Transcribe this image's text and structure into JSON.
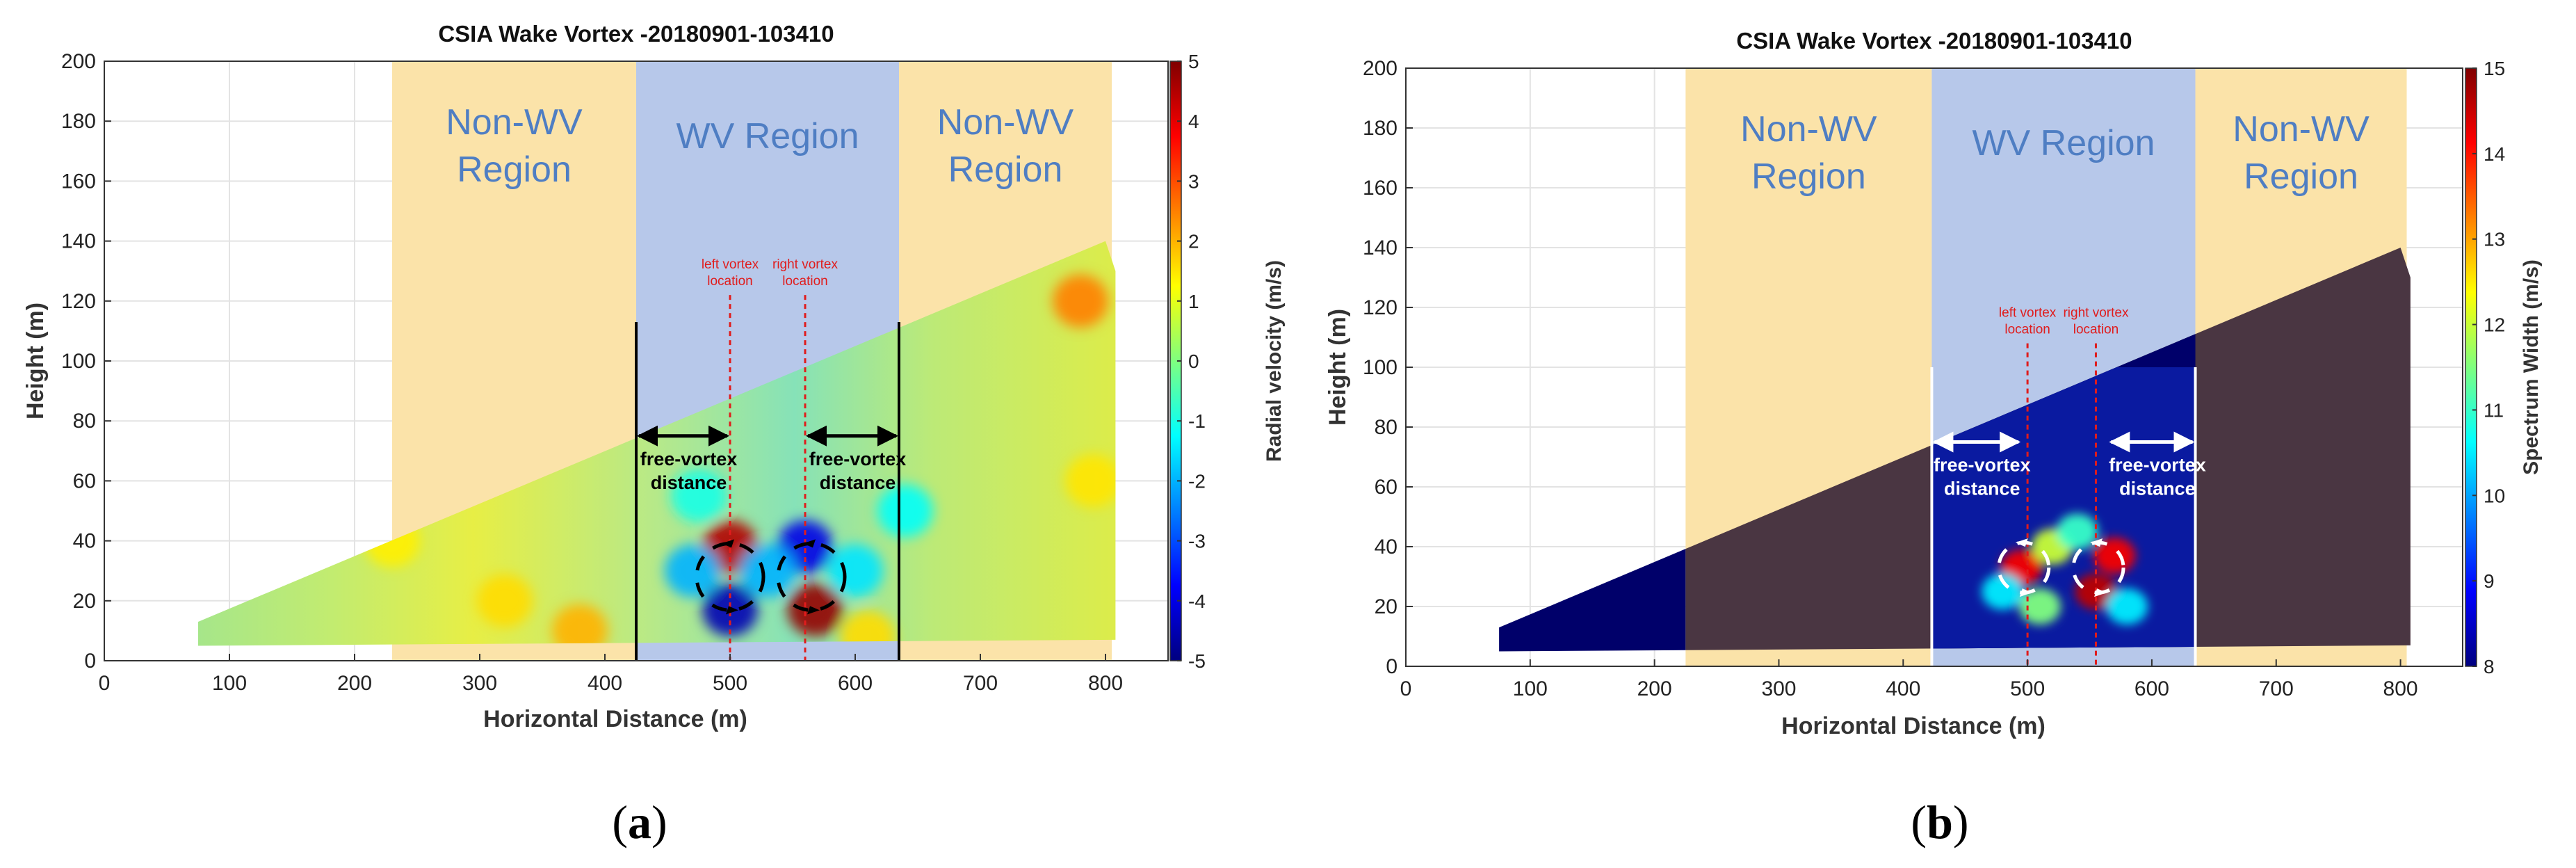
{
  "colors": {
    "non_wv": "#fbe3a9",
    "wv": "#b7c8ea",
    "region_text": "#4f7ec3",
    "marker": "#e01c1c",
    "dark_blue": "#00006a",
    "dark_purple": "#4a3642",
    "arrow_white": "#ffffff",
    "grid": "#e3e3e3"
  },
  "chart_data": [
    {
      "id": "a",
      "type": "heatmap",
      "panel_label": "a",
      "title": "CSIA Wake Vortex -20180901-103410",
      "xlabel": "Horizontal Distance (m)",
      "ylabel": "Height (m)",
      "xlim": [
        0,
        850
      ],
      "ylim": [
        0,
        200
      ],
      "xticks": [
        0,
        100,
        200,
        300,
        400,
        500,
        600,
        700,
        800
      ],
      "yticks": [
        0,
        20,
        40,
        60,
        80,
        100,
        120,
        140,
        160,
        180,
        200
      ],
      "colorbar": {
        "label": "Radial velocity (m/s)",
        "range": [
          -5,
          5
        ],
        "ticks": [
          -5,
          -4,
          -3,
          -2,
          -1,
          0,
          1,
          2,
          3,
          4,
          5
        ],
        "colormap": "jet"
      },
      "scan_sector": {
        "x": [
          75,
          800,
          808,
          808,
          75
        ],
        "y": [
          13,
          140,
          130,
          7,
          5
        ]
      },
      "regions": [
        {
          "label_lines": [
            "Non-WV",
            "Region"
          ],
          "x_range": [
            230,
            425
          ],
          "kind": "non_wv"
        },
        {
          "label_lines": [
            "WV Region"
          ],
          "x_range": [
            425,
            635
          ],
          "kind": "wv"
        },
        {
          "label_lines": [
            "Non-WV",
            "Region"
          ],
          "x_range": [
            635,
            805
          ],
          "kind": "non_wv"
        }
      ],
      "boundary_lines": [
        {
          "x": 425,
          "y_range": [
            0,
            113
          ]
        },
        {
          "x": 635,
          "y_range": [
            0,
            113
          ]
        }
      ],
      "vortex_markers": [
        {
          "label_lines": [
            "left vortex",
            "location"
          ],
          "x": 500,
          "y_top": 122
        },
        {
          "label_lines": [
            "right vortex",
            "location"
          ],
          "x": 560,
          "y_top": 122
        }
      ],
      "free_vortex_arrows": [
        {
          "label_lines": [
            "free-vortex",
            "distance"
          ],
          "x_range": [
            425,
            500
          ],
          "y": 75
        },
        {
          "label_lines": [
            "free-vortex",
            "distance"
          ],
          "x_range": [
            560,
            635
          ],
          "y": 75
        }
      ],
      "vortex_blobs": [
        {
          "x": 500,
          "y": 38,
          "value": 4.5
        },
        {
          "x": 500,
          "y": 17,
          "value": -4.5
        },
        {
          "x": 560,
          "y": 38,
          "value": -4.0
        },
        {
          "x": 568,
          "y": 17,
          "value": 4.8
        },
        {
          "x": 470,
          "y": 30,
          "value": -2.0
        },
        {
          "x": 530,
          "y": 30,
          "value": -2.0
        },
        {
          "x": 600,
          "y": 30,
          "value": -1.5
        },
        {
          "x": 475,
          "y": 55,
          "value": -1.0
        },
        {
          "x": 780,
          "y": 120,
          "value": 2.5
        },
        {
          "x": 790,
          "y": 60,
          "value": 1.5
        },
        {
          "x": 640,
          "y": 50,
          "value": -1.2
        },
        {
          "x": 320,
          "y": 20,
          "value": 1.6
        },
        {
          "x": 380,
          "y": 10,
          "value": 2.0
        },
        {
          "x": 230,
          "y": 40,
          "value": 1.4
        },
        {
          "x": 610,
          "y": 8,
          "value": 1.6
        }
      ]
    },
    {
      "id": "b",
      "type": "heatmap",
      "panel_label": "b",
      "title": "CSIA Wake Vortex -20180901-103410",
      "xlabel": "Horizontal Distance (m)",
      "ylabel": "Height (m)",
      "xlim": [
        0,
        850
      ],
      "ylim": [
        0,
        200
      ],
      "xticks": [
        0,
        100,
        200,
        300,
        400,
        500,
        600,
        700,
        800
      ],
      "yticks": [
        0,
        20,
        40,
        60,
        80,
        100,
        120,
        140,
        160,
        180,
        200
      ],
      "colorbar": {
        "label": "Spectrum Width (m/s)",
        "range": [
          8,
          15
        ],
        "ticks": [
          8,
          9,
          10,
          11,
          12,
          13,
          14,
          15
        ],
        "colormap": "jet"
      },
      "scan_sector": {
        "x": [
          75,
          800,
          808,
          808,
          75
        ],
        "y": [
          13,
          140,
          130,
          7,
          5
        ]
      },
      "regions": [
        {
          "label_lines": [
            "Non-WV",
            "Region"
          ],
          "x_range": [
            225,
            423
          ],
          "kind": "non_wv"
        },
        {
          "label_lines": [
            "WV Region"
          ],
          "x_range": [
            423,
            635
          ],
          "kind": "wv"
        },
        {
          "label_lines": [
            "Non-WV",
            "Region"
          ],
          "x_range": [
            635,
            805
          ],
          "kind": "non_wv"
        }
      ],
      "boundary_lines": [
        {
          "x": 423,
          "y_range": [
            0,
            100
          ]
        },
        {
          "x": 635,
          "y_range": [
            0,
            100
          ]
        }
      ],
      "vortex_markers": [
        {
          "label_lines": [
            "left vortex",
            "location"
          ],
          "x": 500,
          "y_top": 108
        },
        {
          "label_lines": [
            "right vortex",
            "location"
          ],
          "x": 555,
          "y_top": 108
        }
      ],
      "free_vortex_arrows": [
        {
          "label_lines": [
            "free-vortex",
            "distance"
          ],
          "x_range": [
            423,
            495
          ],
          "y": 75
        },
        {
          "label_lines": [
            "free-vortex",
            "distance"
          ],
          "x_range": [
            565,
            635
          ],
          "y": 75
        }
      ],
      "vortex_blobs": [
        {
          "x": 495,
          "y": 33,
          "value": 14.2
        },
        {
          "x": 520,
          "y": 40,
          "value": 12.0
        },
        {
          "x": 555,
          "y": 25,
          "value": 14.6
        },
        {
          "x": 570,
          "y": 37,
          "value": 14.2
        },
        {
          "x": 510,
          "y": 20,
          "value": 11.5
        },
        {
          "x": 540,
          "y": 45,
          "value": 11.0
        },
        {
          "x": 480,
          "y": 25,
          "value": 10.5
        },
        {
          "x": 580,
          "y": 20,
          "value": 10.5
        }
      ]
    }
  ]
}
